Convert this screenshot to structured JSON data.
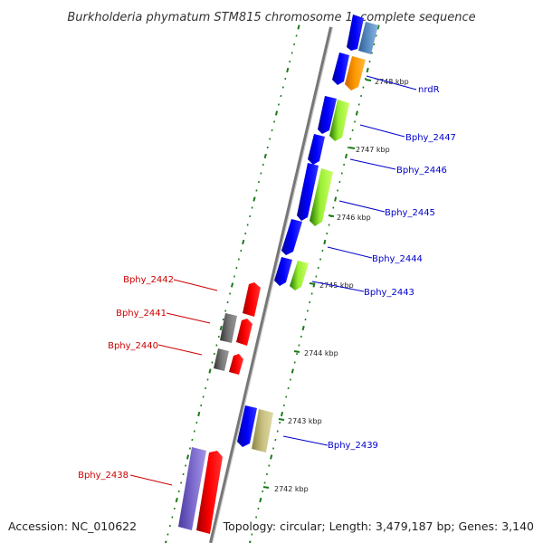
{
  "title": "Burkholderia phymatum STM815 chromosome 1, complete sequence",
  "accession": "Accession: NC_010622",
  "topology": "Topology: circular; Length: 3,479,187 bp; Genes: 3,140",
  "colors": {
    "backbone": "#808080",
    "forward_label": "#0000cc",
    "reverse_label": "#cc0000",
    "tick": "#1a7a1a",
    "cds_forward": "#0000ff",
    "cds_reverse": "#ff0000",
    "rna_gray": "#666666",
    "orange": "#ff9900",
    "steelblue": "#5b8fc5",
    "lightgreen": "#99ee33",
    "khaki": "#c8c080",
    "lavender": "#7b68cc"
  },
  "ticks": [
    "2742 kbp",
    "2743 kbp",
    "2744 kbp",
    "2745 kbp",
    "2746 kbp",
    "2747 kbp",
    "2748 kbp"
  ],
  "forward_genes": [
    "nrdR",
    "Bphy_2447",
    "Bphy_2446",
    "Bphy_2445",
    "Bphy_2444",
    "Bphy_2443",
    "Bphy_2439"
  ],
  "reverse_genes": [
    "Bphy_2442",
    "Bphy_2441",
    "Bphy_2440",
    "Bphy_2438"
  ]
}
